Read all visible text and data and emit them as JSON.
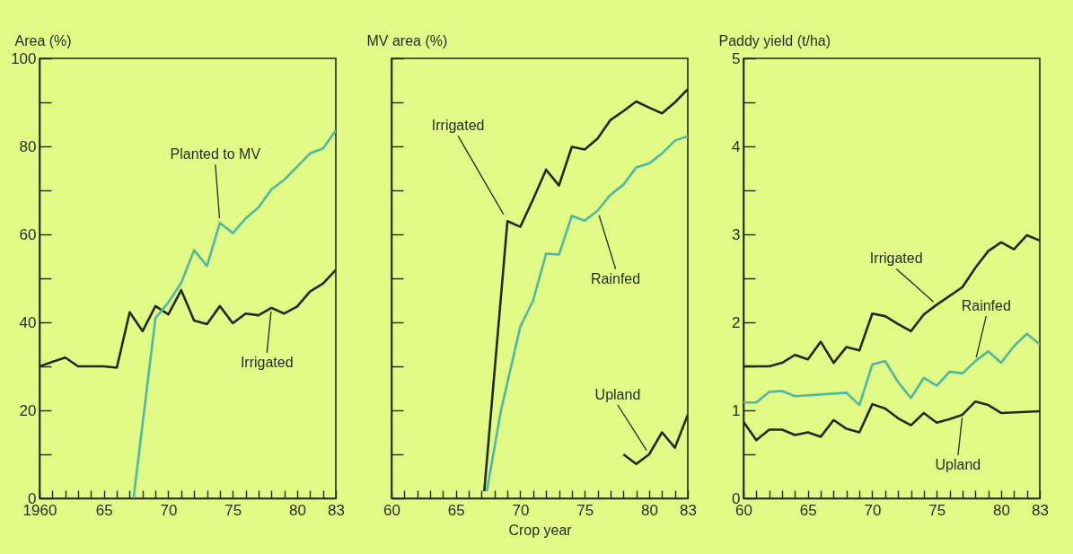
{
  "chart_data": [
    {
      "type": "line",
      "ylabel": "Area (%)",
      "ylim": [
        0,
        100
      ],
      "xlim": [
        1960,
        1983
      ],
      "yticks": [
        0,
        {
          "value": 10,
          "label": null
        },
        20,
        {
          "value": 30,
          "label": null
        },
        40,
        {
          "value": 50,
          "label": null
        },
        60,
        {
          "value": 70,
          "label": null
        },
        80,
        {
          "value": 90,
          "label": null
        },
        100
      ],
      "xticks": [
        {
          "value": 1960,
          "label": "1960"
        },
        {
          "value": 1961,
          "label": null
        },
        {
          "value": 1962,
          "label": null
        },
        {
          "value": 1963,
          "label": null
        },
        {
          "value": 1964,
          "label": null
        },
        {
          "value": 1965,
          "label": "65"
        },
        {
          "value": 1966,
          "label": null
        },
        {
          "value": 1967,
          "label": null
        },
        {
          "value": 1968,
          "label": null
        },
        {
          "value": 1969,
          "label": null
        },
        {
          "value": 1970,
          "label": "70"
        },
        {
          "value": 1971,
          "label": null
        },
        {
          "value": 1972,
          "label": null
        },
        {
          "value": 1973,
          "label": null
        },
        {
          "value": 1974,
          "label": null
        },
        {
          "value": 1975,
          "label": "75"
        },
        {
          "value": 1976,
          "label": null
        },
        {
          "value": 1977,
          "label": null
        },
        {
          "value": 1978,
          "label": null
        },
        {
          "value": 1979,
          "label": null
        },
        {
          "value": 1980,
          "label": "80"
        },
        {
          "value": 1981,
          "label": null
        },
        {
          "value": 1982,
          "label": null
        },
        {
          "value": 1983,
          "label": "83"
        }
      ],
      "series": [
        {
          "name": "Irrigated",
          "color": "#1f2a1c",
          "x": [
            1960,
            1961,
            1962,
            1963,
            1964,
            1965,
            1966,
            1967,
            1968,
            1969,
            1970,
            1971,
            1972,
            1973,
            1974,
            1975,
            1976,
            1977,
            1978,
            1979,
            1980,
            1981,
            1982,
            1983
          ],
          "values": [
            30,
            31,
            32,
            30,
            30,
            30,
            29.7,
            42.3,
            38,
            43.7,
            41.8,
            47.3,
            40.4,
            39.6,
            43.7,
            39.8,
            42,
            41.6,
            43.3,
            42,
            43.6,
            47,
            48.8,
            51.9
          ]
        },
        {
          "name": "Planted to MV",
          "color": "#4fb8a4",
          "x": [
            1967.3,
            1969,
            1970,
            1971,
            1972,
            1973,
            1974,
            1975,
            1976,
            1977,
            1978,
            1979,
            1980,
            1981,
            1982,
            1983
          ],
          "values": [
            0,
            41,
            44.5,
            49,
            56.4,
            52.8,
            62.6,
            60.3,
            63.6,
            66.1,
            70.2,
            72.4,
            75.4,
            78.4,
            79.5,
            83.6
          ]
        }
      ]
    },
    {
      "type": "line",
      "ylabel": "MV area (%)",
      "xlabel": "Crop year",
      "ylim": [
        0,
        100
      ],
      "xlim": [
        1960,
        1983
      ],
      "tick_labels": "x",
      "yticks": [
        0,
        {
          "value": 10,
          "label": null
        },
        20,
        {
          "value": 30,
          "label": null
        },
        40,
        {
          "value": 50,
          "label": null
        },
        60,
        {
          "value": 70,
          "label": null
        },
        80,
        {
          "value": 90,
          "label": null
        },
        100
      ],
      "xticks": [
        {
          "value": 1960,
          "label": "60"
        },
        {
          "value": 1961,
          "label": null
        },
        {
          "value": 1962,
          "label": null
        },
        {
          "value": 1963,
          "label": null
        },
        {
          "value": 1964,
          "label": null
        },
        {
          "value": 1965,
          "label": "65"
        },
        {
          "value": 1966,
          "label": null
        },
        {
          "value": 1967,
          "label": null
        },
        {
          "value": 1968,
          "label": null
        },
        {
          "value": 1969,
          "label": null
        },
        {
          "value": 1970,
          "label": "70"
        },
        {
          "value": 1971,
          "label": null
        },
        {
          "value": 1972,
          "label": null
        },
        {
          "value": 1973,
          "label": null
        },
        {
          "value": 1974,
          "label": null
        },
        {
          "value": 1975,
          "label": "75"
        },
        {
          "value": 1976,
          "label": null
        },
        {
          "value": 1977,
          "label": null
        },
        {
          "value": 1978,
          "label": null
        },
        {
          "value": 1979,
          "label": null
        },
        {
          "value": 1980,
          "label": "80"
        },
        {
          "value": 1981,
          "label": null
        },
        {
          "value": 1982,
          "label": null
        },
        {
          "value": 1983,
          "label": "83"
        }
      ],
      "series": [
        {
          "name": "Irrigated",
          "color": "#1f2a1c",
          "x": [
            1967.2,
            1969,
            1970,
            1971,
            1972,
            1973,
            1974,
            1975,
            1976,
            1977,
            1978,
            1979,
            1980,
            1981,
            1982,
            1983
          ],
          "values": [
            1.6,
            63,
            61.7,
            68,
            74.7,
            71.1,
            79.9,
            79.3,
            81.8,
            86,
            88,
            90.2,
            88.8,
            87.5,
            90,
            93
          ]
        },
        {
          "name": "Rainfed",
          "color": "#4fb8a4",
          "x": [
            1967.4,
            1968.5,
            1970,
            1971,
            1972,
            1973,
            1974,
            1975,
            1976,
            1977,
            1978,
            1979,
            1980,
            1981,
            1982,
            1983
          ],
          "values": [
            1.6,
            20,
            39,
            45,
            55.6,
            55.4,
            64.2,
            63.1,
            65.4,
            69,
            71.3,
            75.2,
            76.1,
            78.4,
            81.3,
            82.3
          ]
        },
        {
          "name": "Upland",
          "color": "#1f2a1c",
          "x": [
            1978,
            1979,
            1980,
            1981,
            1982,
            1983
          ],
          "values": [
            10,
            7.8,
            10,
            15,
            11.5,
            19
          ]
        }
      ]
    },
    {
      "type": "line",
      "ylabel": "Paddy yield (t/ha)",
      "ylim": [
        0,
        5
      ],
      "xlim": [
        1960,
        1983
      ],
      "yticks": [
        0,
        {
          "value": 0.5,
          "label": null
        },
        1,
        {
          "value": 1.5,
          "label": null
        },
        2,
        {
          "value": 2.5,
          "label": null
        },
        3,
        {
          "value": 3.5,
          "label": null
        },
        4,
        {
          "value": 4.5,
          "label": null
        },
        5
      ],
      "xticks": [
        {
          "value": 1960,
          "label": "60"
        },
        {
          "value": 1961,
          "label": null
        },
        {
          "value": 1962,
          "label": null
        },
        {
          "value": 1963,
          "label": null
        },
        {
          "value": 1964,
          "label": null
        },
        {
          "value": 1965,
          "label": "65"
        },
        {
          "value": 1966,
          "label": null
        },
        {
          "value": 1967,
          "label": null
        },
        {
          "value": 1968,
          "label": null
        },
        {
          "value": 1969,
          "label": null
        },
        {
          "value": 1970,
          "label": "70"
        },
        {
          "value": 1971,
          "label": null
        },
        {
          "value": 1972,
          "label": null
        },
        {
          "value": 1973,
          "label": null
        },
        {
          "value": 1974,
          "label": null
        },
        {
          "value": 1975,
          "label": "75"
        },
        {
          "value": 1976,
          "label": null
        },
        {
          "value": 1977,
          "label": null
        },
        {
          "value": 1978,
          "label": null
        },
        {
          "value": 1979,
          "label": null
        },
        {
          "value": 1980,
          "label": "80"
        },
        {
          "value": 1981,
          "label": null
        },
        {
          "value": 1982,
          "label": null
        },
        {
          "value": 1983,
          "label": "83"
        }
      ],
      "series": [
        {
          "name": "Irrigated",
          "color": "#1f2a1c",
          "x": [
            1960,
            1961,
            1962,
            1963,
            1964,
            1965,
            1966,
            1967,
            1968,
            1969,
            1970,
            1971,
            1972,
            1973,
            1974,
            1975,
            1976,
            1977,
            1978,
            1979,
            1980,
            1981,
            1982,
            1983
          ],
          "values": [
            1.5,
            1.5,
            1.5,
            1.54,
            1.63,
            1.58,
            1.78,
            1.54,
            1.72,
            1.68,
            2.1,
            2.07,
            1.98,
            1.9,
            2.09,
            2.2,
            2.3,
            2.4,
            2.62,
            2.81,
            2.91,
            2.83,
            2.99,
            2.93
          ]
        },
        {
          "name": "Rainfed",
          "color": "#4fb8a4",
          "x": [
            1960,
            1961,
            1962,
            1963,
            1964,
            1968,
            1969,
            1970,
            1971,
            1972,
            1973,
            1974,
            1975,
            1976,
            1977,
            1978,
            1979,
            1980,
            1981,
            1982,
            1983
          ],
          "values": [
            1.09,
            1.09,
            1.21,
            1.22,
            1.16,
            1.2,
            1.06,
            1.52,
            1.56,
            1.32,
            1.14,
            1.37,
            1.28,
            1.44,
            1.42,
            1.56,
            1.67,
            1.54,
            1.73,
            1.87,
            1.75
          ]
        },
        {
          "name": "Upland",
          "color": "#1f2a1c",
          "x": [
            1960,
            1961,
            1962,
            1963,
            1964,
            1965,
            1966,
            1967,
            1968,
            1969,
            1970,
            1971,
            1972,
            1973,
            1974,
            1975,
            1976,
            1977,
            1978,
            1979,
            1980,
            1983
          ],
          "values": [
            0.87,
            0.66,
            0.78,
            0.78,
            0.72,
            0.75,
            0.7,
            0.89,
            0.79,
            0.75,
            1.07,
            1.02,
            0.91,
            0.83,
            0.97,
            0.86,
            0.9,
            0.95,
            1.1,
            1.06,
            0.97,
            0.99
          ]
        }
      ]
    }
  ]
}
